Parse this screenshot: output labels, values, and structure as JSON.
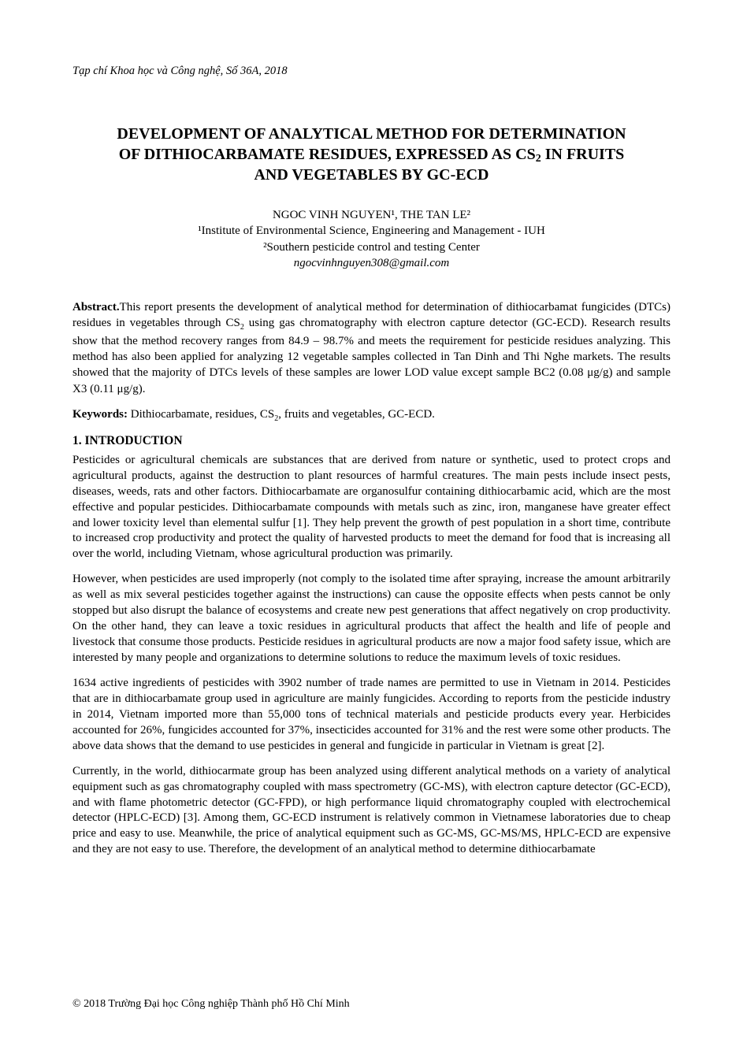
{
  "journal_header": "Tạp chí Khoa học và Công nghệ, Số 36A, 2018",
  "title_line1": "DEVELOPMENT OF ANALYTICAL METHOD FOR DETERMINATION",
  "title_line2_pre": "OF DITHIOCARBAMATE RESIDUES, EXPRESSED AS CS",
  "title_line2_sub": "2",
  "title_line2_post": " IN FRUITS",
  "title_line3": "AND VEGETABLES BY GC-ECD",
  "authors": "NGOC VINH NGUYEN¹, THE TAN LE²",
  "affiliation1": "¹Institute of Environmental Science, Engineering and Management - IUH",
  "affiliation2": "²Southern pesticide control and testing Center",
  "email": "ngocvinhnguyen308@gmail.com",
  "abstract_label": "Abstract.",
  "abstract_text_pre": "This report presents the development of analytical method for determination of dithiocarbamat fungicides (DTCs) residues in vegetables through CS",
  "abstract_sub": "2",
  "abstract_text_post": " using gas chromatography with electron capture detector (GC-ECD). Research results show that the method recovery ranges from 84.9 – 98.7% and meets the requirement for pesticide residues analyzing. This method has also been applied for analyzing 12 vegetable samples collected in Tan Dinh and Thi Nghe markets. The results showed that the majority of DTCs levels of these samples are lower LOD value except sample BC2 (0.08 μg/g) and sample X3 (0.11 μg/g).",
  "keywords_label": "Keywords:",
  "keywords_pre": " Dithiocarbamate, residues, CS",
  "keywords_sub": "2",
  "keywords_post": ", fruits and vegetables, GC-ECD.",
  "section_heading": "1. INTRODUCTION",
  "para1": "Pesticides or agricultural chemicals are substances that are derived from nature or synthetic, used to protect crops and agricultural products, against the destruction to plant resources of harmful creatures. The main pests include insect pests, diseases, weeds, rats and other factors. Dithiocarbamate are organosulfur containing dithiocarbamic acid, which are the most effective and popular pesticides. Dithiocarbamate compounds with metals such as zinc, iron, manganese have greater effect and lower toxicity level than elemental sulfur [1]. They help prevent the growth of pest population in a short time, contribute to increased crop productivity and protect the quality of harvested products to meet the demand for food that is increasing all over the world, including Vietnam, whose agricultural production was primarily.",
  "para2": "However, when pesticides are used improperly (not comply to the isolated time after spraying, increase the amount arbitrarily as well as mix several pesticides together against the instructions) can cause the opposite effects when pests cannot be only stopped but also disrupt the balance of ecosystems and create new pest generations that affect negatively on crop productivity. On the other hand, they can leave a toxic residues in agricultural products that affect the health and life of people and livestock that consume those products. Pesticide residues in agricultural products are now a major food safety issue, which are interested by many people and organizations to determine solutions to reduce the maximum levels of toxic residues.",
  "para3": "1634 active ingredients of pesticides with 3902 number of trade names are permitted to use in Vietnam in 2014. Pesticides that are in dithiocarbamate group used in agriculture are mainly fungicides. According to reports from the pesticide industry in 2014, Vietnam imported more than 55,000 tons of technical materials and pesticide products every year. Herbicides accounted for 26%, fungicides accounted for 37%, insecticides accounted for 31% and the rest were some other products. The above data shows that the demand to use pesticides in general and fungicide in particular in Vietnam is great [2].",
  "para4": "Currently, in the world, dithiocarmate group has been analyzed using different analytical methods on a variety of analytical equipment such as gas chromatography coupled with mass spectrometry (GC-MS), with electron capture detector (GC-ECD), and with flame photometric detector (GC-FPD), or high performance liquid chromatography coupled with electrochemical detector (HPLC-ECD) [3]. Among them, GC-ECD instrument is relatively common in Vietnamese laboratories due to cheap price and easy to use. Meanwhile, the price of analytical equipment such as GC-MS, GC-MS/MS, HPLC-ECD are expensive and they are not easy to use. Therefore, the development of an analytical method to determine dithiocarbamate",
  "footer": "© 2018 Trường Đại học Công nghiệp Thành phố Hồ Chí Minh",
  "colors": {
    "text": "#000000",
    "background": "#ffffff"
  },
  "typography": {
    "body_font": "Times New Roman",
    "title_fontsize": 20,
    "body_fontsize": 15,
    "header_fontsize": 14.5,
    "footer_fontsize": 14
  }
}
